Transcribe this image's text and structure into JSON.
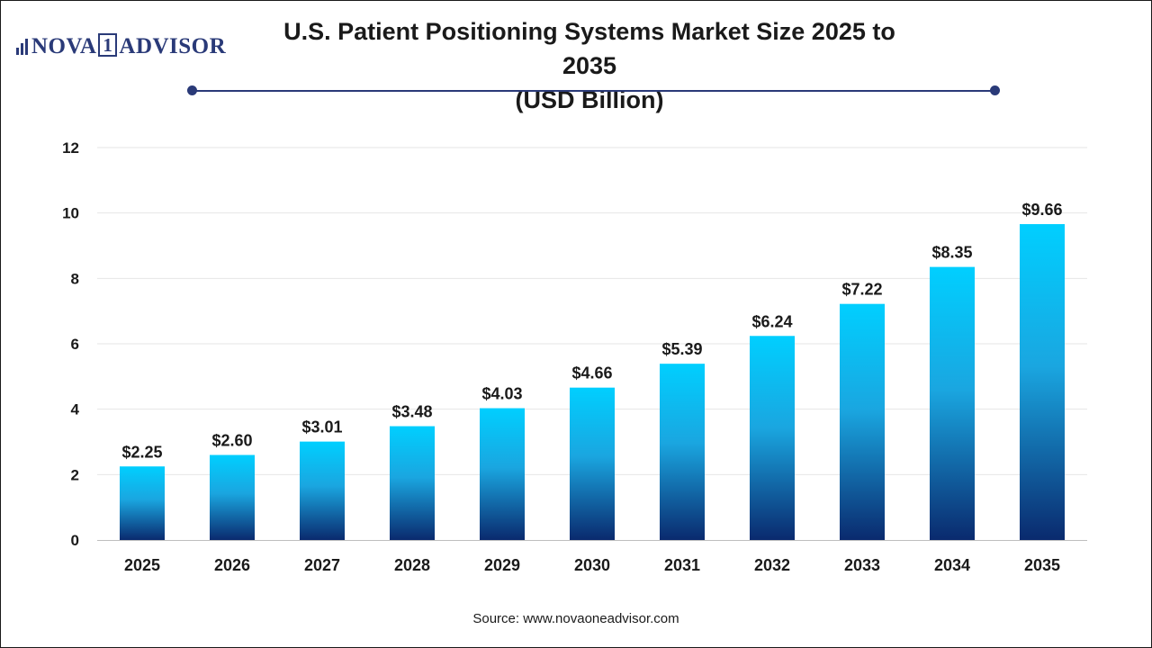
{
  "header": {
    "logo_text_left": "NOVA",
    "logo_text_mid": "1",
    "logo_text_right": "ADVISOR",
    "title_line1": "U.S. Patient Positioning Systems Market Size 2025 to 2035",
    "title_line2": "(USD Billion)"
  },
  "footer": {
    "source": "Source: www.novaoneadvisor.com"
  },
  "colors": {
    "bar_top": "#00cfff",
    "bar_bottom": "#0a2a6e",
    "accent": "#2a3a78"
  },
  "chart_data": {
    "type": "bar",
    "title": "U.S. Patient Positioning Systems Market Size 2025 to 2035",
    "subtitle": "(USD Billion)",
    "xlabel": "",
    "ylabel": "",
    "categories": [
      "2025",
      "2026",
      "2027",
      "2028",
      "2029",
      "2030",
      "2031",
      "2032",
      "2033",
      "2034",
      "2035"
    ],
    "values": [
      2.25,
      2.6,
      3.01,
      3.48,
      4.03,
      4.66,
      5.39,
      6.24,
      7.22,
      8.35,
      9.66
    ],
    "value_labels": [
      "$2.25",
      "$2.60",
      "$3.01",
      "$3.48",
      "$4.03",
      "$4.66",
      "$5.39",
      "$6.24",
      "$7.22",
      "$8.35",
      "$9.66"
    ],
    "yticks": [
      "0",
      "2",
      "4",
      "6",
      "8",
      "10",
      "12"
    ],
    "ylim": [
      0,
      12
    ],
    "grid": true,
    "legend": "none"
  }
}
